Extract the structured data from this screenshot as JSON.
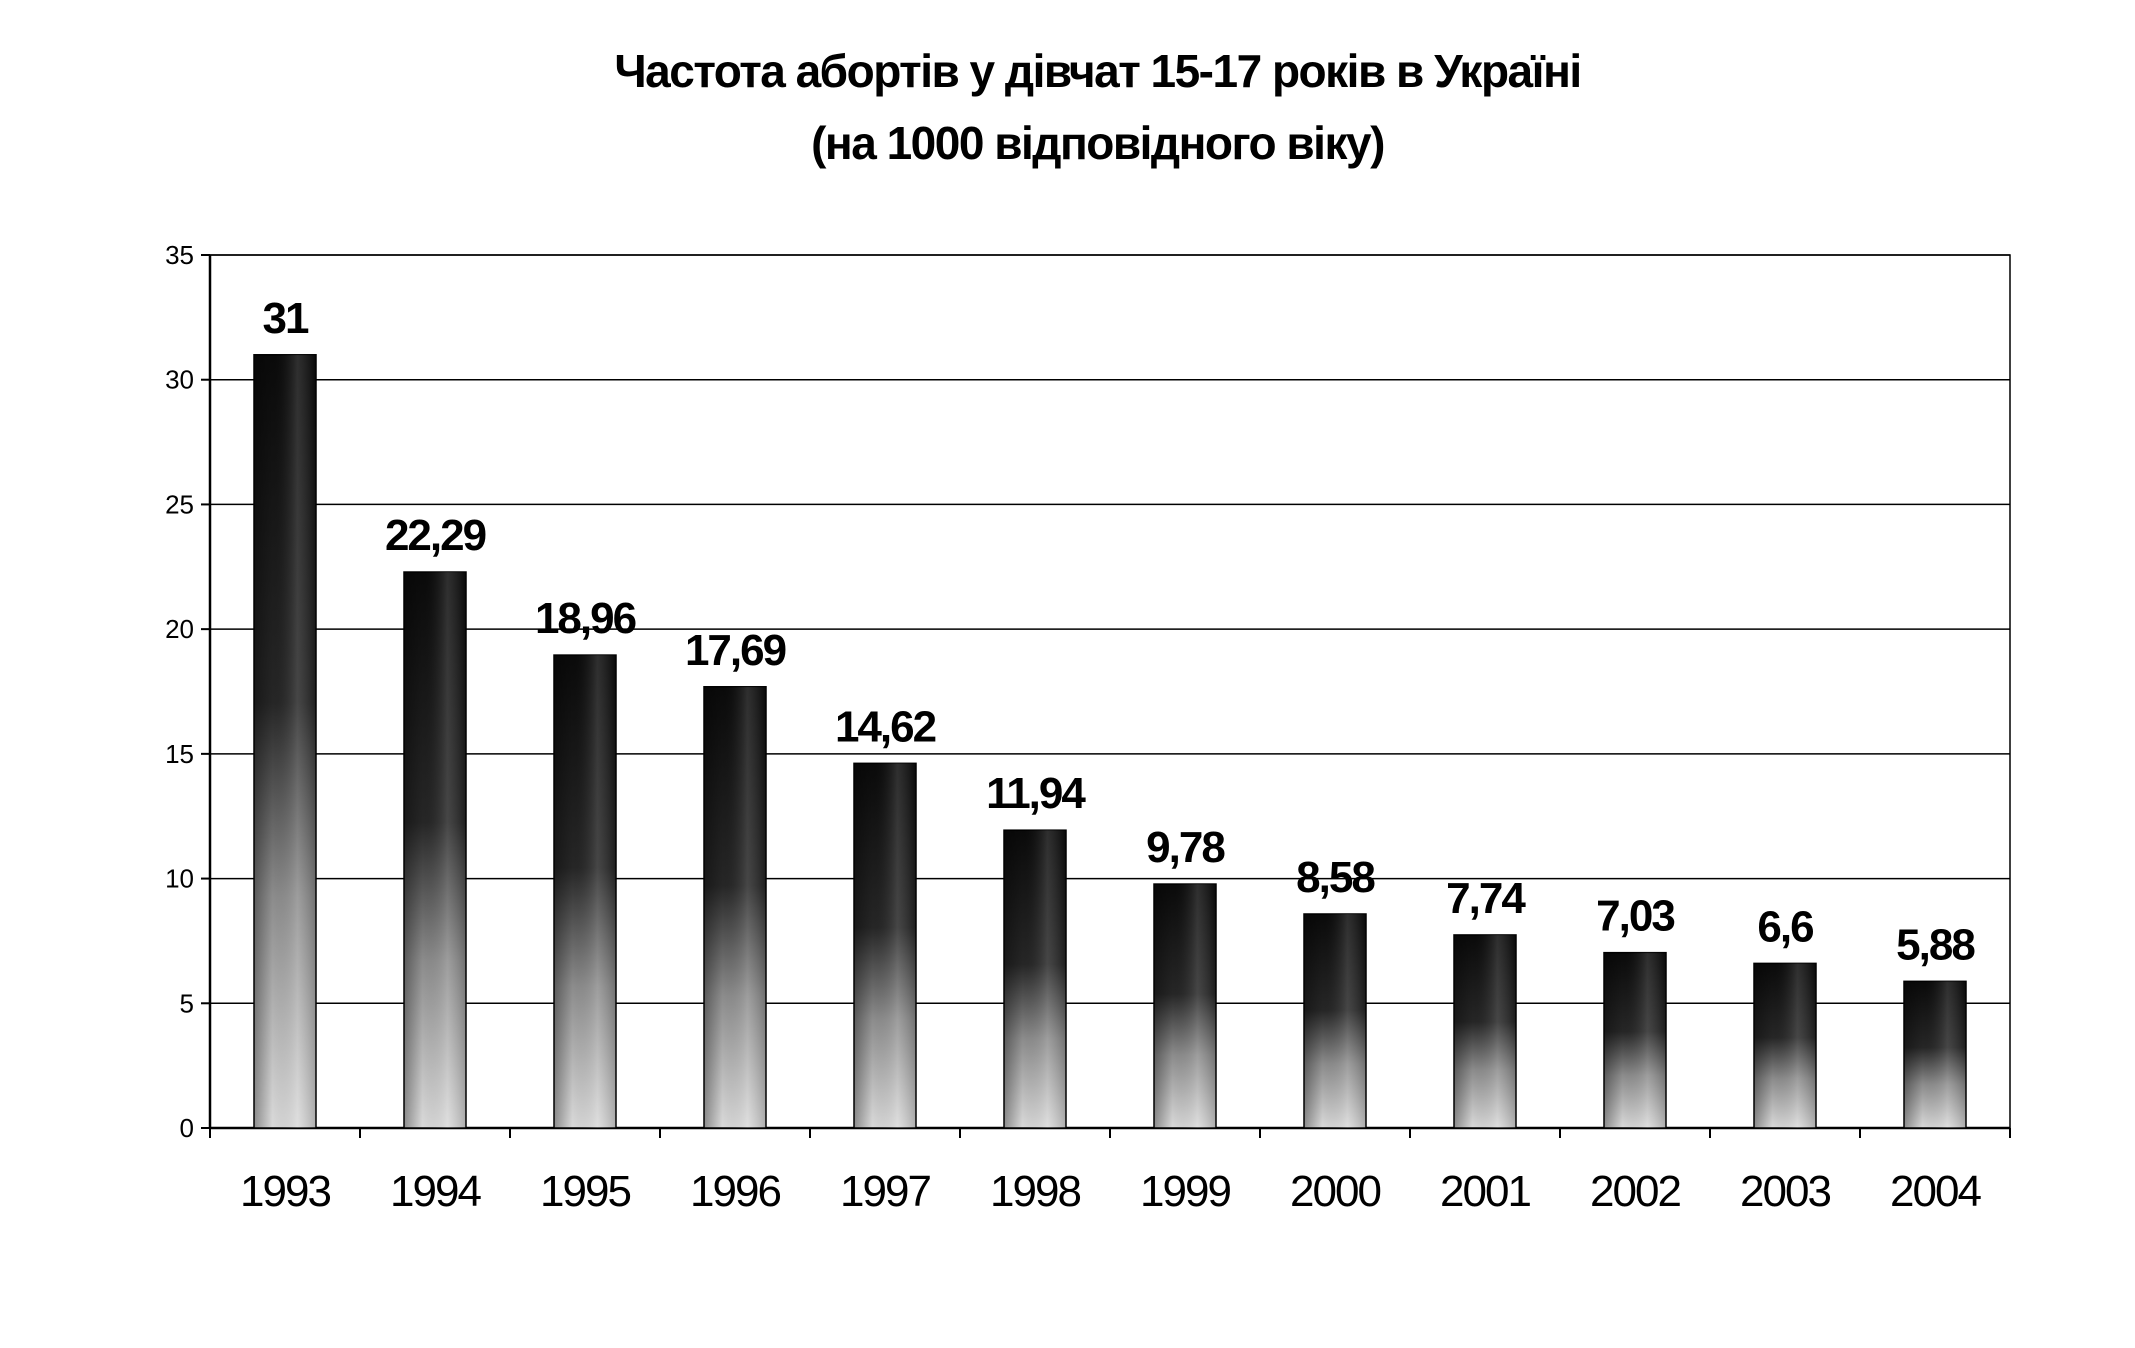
{
  "chart_data": {
    "type": "bar",
    "title": "Частота абортів у дівчат 15-17 років в Україні",
    "subtitle": "(на 1000 відповідного віку)",
    "categories": [
      "1993",
      "1994",
      "1995",
      "1996",
      "1997",
      "1998",
      "1999",
      "2000",
      "2001",
      "2002",
      "2003",
      "2004"
    ],
    "values": [
      31,
      22.29,
      18.96,
      17.69,
      14.62,
      11.94,
      9.78,
      8.58,
      7.74,
      7.03,
      6.6,
      5.88
    ],
    "value_labels": [
      "31",
      "22,29",
      "18,96",
      "17,69",
      "14,62",
      "11,94",
      "9,78",
      "8,58",
      "7,74",
      "7,03",
      "6,6",
      "5,88"
    ],
    "y_ticks": [
      "0",
      "5",
      "10",
      "15",
      "20",
      "25",
      "30",
      "35"
    ],
    "xlabel": "",
    "ylabel": "",
    "ylim": [
      0,
      35
    ],
    "grid": true,
    "legend": "none",
    "colors": {
      "bar_top": "#0d0d0d",
      "bar_bottom": "#d9d9d9",
      "grid": "#000000",
      "background": "#ffffff"
    }
  }
}
